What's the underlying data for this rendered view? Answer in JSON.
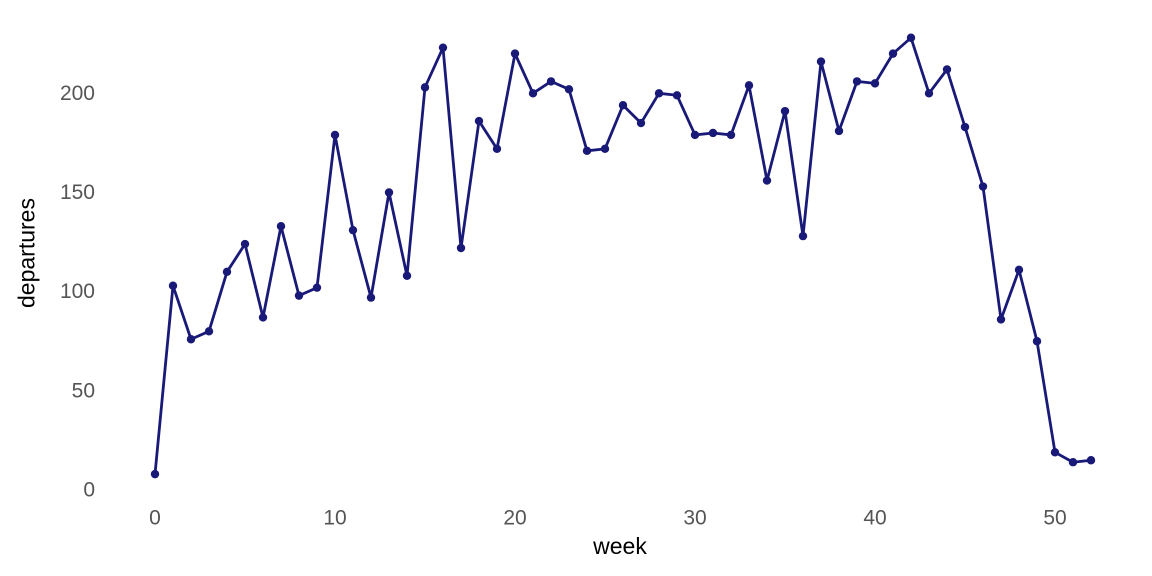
{
  "chart_data": {
    "type": "line",
    "title": "",
    "xlabel": "week",
    "ylabel": "departures",
    "x": [
      0,
      1,
      2,
      3,
      4,
      5,
      6,
      7,
      8,
      9,
      10,
      11,
      12,
      13,
      14,
      15,
      16,
      17,
      18,
      19,
      20,
      21,
      22,
      23,
      24,
      25,
      26,
      27,
      28,
      29,
      30,
      31,
      32,
      33,
      34,
      35,
      36,
      37,
      38,
      39,
      40,
      41,
      42,
      43,
      44,
      45,
      46,
      47,
      48,
      49,
      50,
      51,
      52
    ],
    "values": [
      8,
      103,
      76,
      80,
      110,
      124,
      87,
      133,
      98,
      102,
      179,
      131,
      97,
      150,
      108,
      203,
      223,
      122,
      186,
      172,
      220,
      200,
      206,
      202,
      171,
      172,
      194,
      185,
      200,
      199,
      179,
      180,
      179,
      204,
      156,
      191,
      128,
      216,
      181,
      206,
      205,
      220,
      228,
      200,
      212,
      183,
      153,
      86,
      111,
      75,
      19,
      14,
      15
    ],
    "xticks": [
      0,
      10,
      20,
      30,
      40,
      50
    ],
    "yticks": [
      0,
      50,
      100,
      150,
      200
    ],
    "xlim": [
      0,
      52
    ],
    "ylim": [
      0,
      237
    ],
    "grid": false,
    "legend": null,
    "marker": "circle"
  },
  "colors": {
    "series": "#191978",
    "tick_label": "#555555",
    "axis_title": "#000000",
    "background": "#ffffff"
  }
}
